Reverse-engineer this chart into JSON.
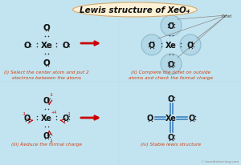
{
  "title": "Lewis structure of XeO₄",
  "bg_color": "#c2e4f0",
  "title_bg": "#fdf0d5",
  "title_border": "#c8a87a",
  "caption_color": "#d44010",
  "dot_color": "#333333",
  "atom_color": "#111111",
  "arrow_color": "#cc0000",
  "circle_color": "#a8cfe0",
  "double_bond_color": "#3377bb",
  "watermark": "© knordislearning.com",
  "captions": [
    "(i) Select the center atom and put 2\nelectrons between the atoms",
    "(ii) Complete the octet on outside\natoms and check the formal charge",
    "(iii) Reduce the formal charge",
    "(iv) Stable lewis structure"
  ]
}
